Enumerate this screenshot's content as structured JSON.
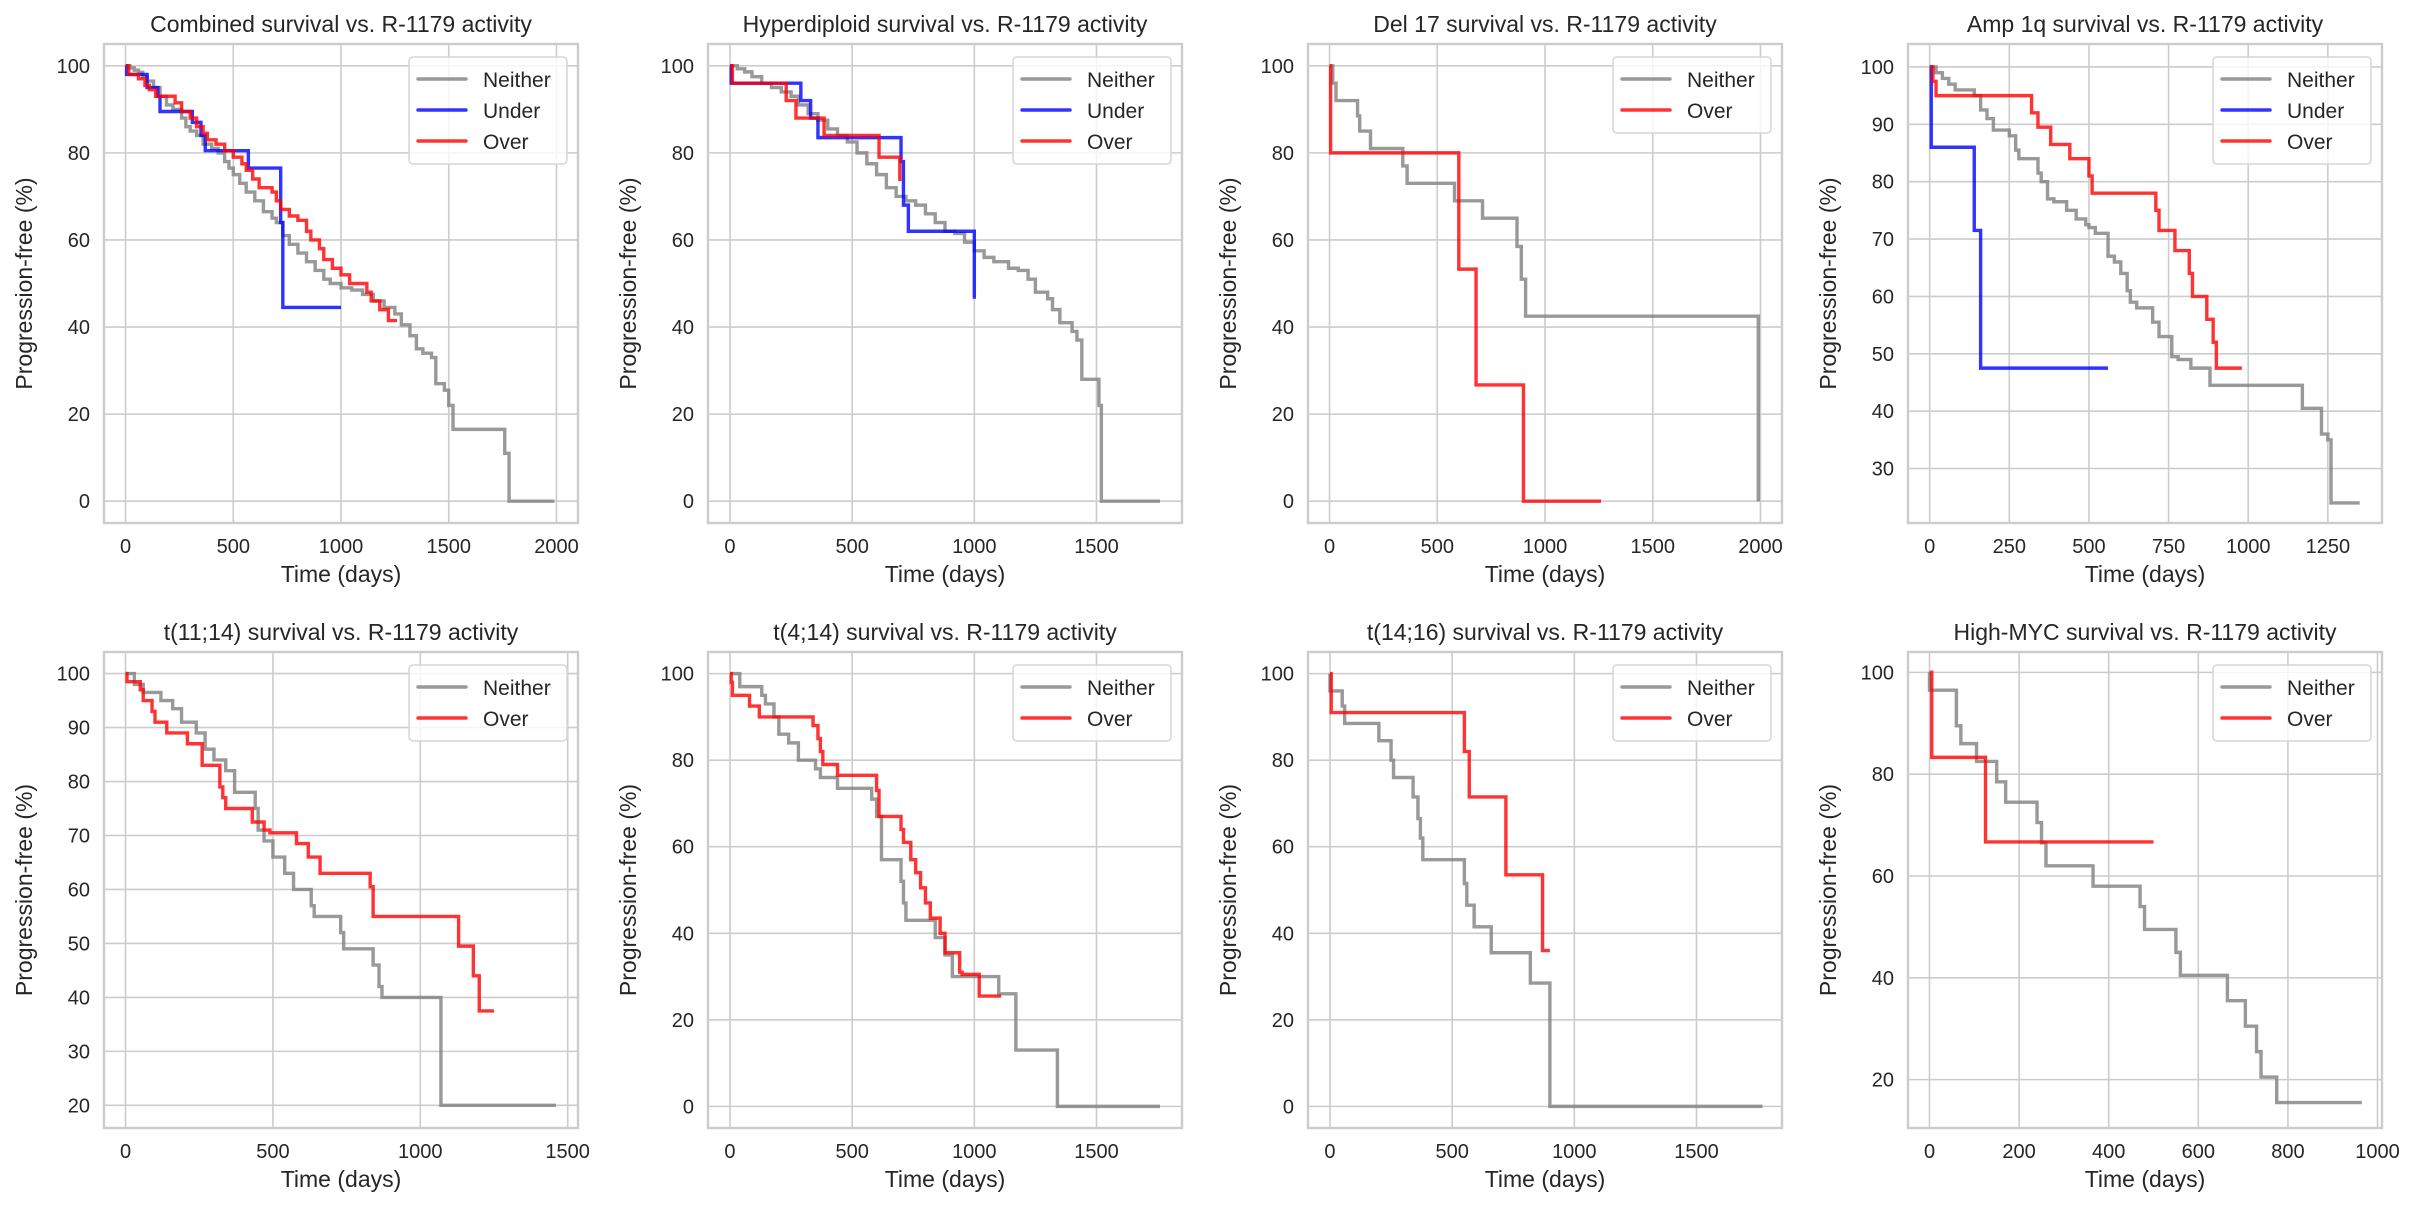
{
  "figure": {
    "series_colors": {
      "Neither": "#808080",
      "Under": "#0000ff",
      "Over": "#ff0000"
    }
  },
  "chart_data": [
    {
      "type": "line",
      "subtype": "kaplan-meier-step",
      "title": "Combined survival vs. R-1179 activity",
      "xlabel": "Time (days)",
      "ylabel": "Progression-free (%)",
      "xlim": [
        -100,
        2100
      ],
      "ylim": [
        -5,
        105
      ],
      "xticks": [
        0,
        500,
        1000,
        1500,
        2000
      ],
      "yticks": [
        0,
        20,
        40,
        60,
        80,
        100
      ],
      "grid": true,
      "legend": "top-right",
      "series": [
        {
          "name": "Neither",
          "x": [
            0,
            20,
            40,
            60,
            80,
            100,
            130,
            160,
            190,
            220,
            260,
            280,
            300,
            330,
            360,
            400,
            430,
            460,
            480,
            500,
            530,
            560,
            600,
            640,
            680,
            700,
            730,
            760,
            800,
            840,
            880,
            920,
            950,
            1000,
            1050,
            1100,
            1150,
            1200,
            1250,
            1280,
            1320,
            1350,
            1380,
            1420,
            1440,
            1480,
            1500,
            1520,
            1760,
            1780,
            1990
          ],
          "y": [
            100,
            99.5,
            99,
            98.5,
            97.5,
            96.5,
            95,
            93,
            91,
            90,
            88,
            86,
            85,
            84,
            82,
            81,
            80,
            78,
            76.5,
            75,
            73,
            71,
            69,
            66.5,
            65,
            64,
            61,
            59,
            57,
            55,
            53,
            51,
            50,
            49,
            48.5,
            47.5,
            46,
            44.5,
            43,
            40.5,
            38,
            35,
            34,
            33,
            27,
            25.5,
            22,
            16.5,
            11,
            0,
            0
          ]
        },
        {
          "name": "Under",
          "x": [
            0,
            5,
            100,
            150,
            160,
            300,
            310,
            350,
            370,
            560,
            570,
            700,
            720,
            730,
            1000
          ],
          "y": [
            100,
            98,
            95,
            93,
            89.5,
            89.5,
            87,
            84,
            80.5,
            80.5,
            76.5,
            76.5,
            64,
            44.5,
            44.5
          ]
        },
        {
          "name": "Over",
          "x": [
            0,
            15,
            60,
            90,
            110,
            140,
            180,
            230,
            260,
            300,
            330,
            360,
            380,
            420,
            460,
            500,
            540,
            560,
            590,
            620,
            680,
            700,
            720,
            760,
            800,
            840,
            860,
            900,
            920,
            960,
            1000,
            1040,
            1120,
            1140,
            1180,
            1220,
            1260
          ],
          "y": [
            100,
            98,
            97,
            95.5,
            94.5,
            93,
            93,
            91.5,
            89.5,
            88,
            86,
            84.5,
            83,
            82,
            80.5,
            79,
            77.5,
            76,
            74,
            72,
            71,
            69,
            67,
            65.5,
            64.5,
            62,
            60,
            58,
            55.5,
            53.5,
            52,
            50,
            48,
            46,
            44,
            41.5,
            41.5
          ]
        }
      ]
    },
    {
      "type": "line",
      "subtype": "kaplan-meier-step",
      "title": "Hyperdiploid survival vs. R-1179 activity",
      "xlabel": "Time (days)",
      "ylabel": "Progression-free (%)",
      "xlim": [
        -90,
        1850
      ],
      "ylim": [
        -5,
        105
      ],
      "xticks": [
        0,
        500,
        1000,
        1500
      ],
      "yticks": [
        0,
        20,
        40,
        60,
        80,
        100
      ],
      "grid": true,
      "legend": "top-right",
      "series": [
        {
          "name": "Neither",
          "x": [
            0,
            30,
            60,
            90,
            130,
            170,
            210,
            250,
            280,
            320,
            360,
            400,
            440,
            480,
            520,
            560,
            600,
            640,
            680,
            720,
            760,
            800,
            840,
            880,
            920,
            960,
            1000,
            1040,
            1080,
            1140,
            1180,
            1220,
            1250,
            1300,
            1320,
            1350,
            1400,
            1420,
            1440,
            1510,
            1520,
            1760
          ],
          "y": [
            100,
            99.3,
            98.6,
            97.5,
            96,
            95,
            94,
            93,
            91,
            89,
            87.5,
            85.5,
            84,
            82.5,
            80,
            77.5,
            75,
            72,
            70,
            69,
            68,
            66,
            64,
            62,
            61.5,
            59.5,
            57.5,
            56,
            55,
            53.5,
            53,
            51,
            48,
            46.5,
            44,
            41,
            39,
            37,
            28,
            22,
            0,
            0
          ]
        },
        {
          "name": "Under",
          "x": [
            0,
            5,
            290,
            330,
            360,
            700,
            710,
            730,
            1000
          ],
          "y": [
            100,
            96,
            92,
            88,
            83.5,
            78,
            68,
            62,
            46.5
          ]
        },
        {
          "name": "Over",
          "x": [
            0,
            10,
            230,
            270,
            385,
            610,
            695
          ],
          "y": [
            100,
            96,
            92,
            88,
            84,
            79,
            73.5
          ]
        }
      ]
    },
    {
      "type": "line",
      "subtype": "kaplan-meier-step",
      "title": "Del 17 survival vs. R-1179 activity",
      "xlabel": "Time (days)",
      "ylabel": "Progression-free (%)",
      "xlim": [
        -100,
        2100
      ],
      "ylim": [
        -5,
        105
      ],
      "xticks": [
        0,
        500,
        1000,
        1500,
        2000
      ],
      "yticks": [
        0,
        20,
        40,
        60,
        80,
        100
      ],
      "grid": true,
      "legend": "top-right",
      "series": [
        {
          "name": "Neither",
          "x": [
            0,
            15,
            30,
            130,
            140,
            190,
            340,
            360,
            580,
            710,
            870,
            890,
            910,
            1990
          ],
          "y": [
            100,
            96,
            92,
            88.5,
            85,
            81,
            77,
            73,
            69,
            65,
            58.5,
            51,
            42.5,
            0
          ]
        },
        {
          "name": "Over",
          "x": [
            0,
            5,
            600,
            680,
            900,
            1260
          ],
          "y": [
            100,
            80,
            53.3,
            26.7,
            0,
            0
          ]
        }
      ]
    },
    {
      "type": "line",
      "subtype": "kaplan-meier-step",
      "title": "Amp 1q survival vs. R-1179 activity",
      "xlabel": "Time (days)",
      "ylabel": "Progression-free (%)",
      "xlim": [
        -68,
        1420
      ],
      "ylim": [
        20.5,
        104
      ],
      "xticks": [
        0,
        250,
        500,
        750,
        1000,
        1250
      ],
      "yticks": [
        30,
        40,
        50,
        60,
        70,
        80,
        90,
        100
      ],
      "grid": true,
      "legend": "top-right",
      "series": [
        {
          "name": "Neither",
          "x": [
            0,
            20,
            40,
            60,
            80,
            140,
            160,
            180,
            200,
            250,
            270,
            280,
            340,
            350,
            370,
            390,
            430,
            460,
            490,
            500,
            520,
            560,
            580,
            600,
            620,
            630,
            650,
            700,
            720,
            760,
            780,
            820,
            880,
            1170,
            1230,
            1250,
            1260,
            1350
          ],
          "y": [
            100,
            99,
            98,
            97,
            96,
            95,
            92.5,
            91,
            89,
            88,
            85.5,
            84,
            81.5,
            80,
            77,
            76.5,
            75,
            73.5,
            72.5,
            72,
            71,
            67,
            66,
            64,
            61,
            59,
            58,
            55.5,
            53,
            49.5,
            49,
            47.5,
            44.5,
            40.5,
            36,
            35,
            24,
            24
          ]
        },
        {
          "name": "Under",
          "x": [
            0,
            5,
            140,
            160,
            560
          ],
          "y": [
            100,
            86,
            71.5,
            47.5,
            47.5
          ]
        },
        {
          "name": "Over",
          "x": [
            0,
            10,
            20,
            320,
            340,
            380,
            440,
            500,
            510,
            710,
            720,
            770,
            815,
            825,
            870,
            890,
            900,
            980
          ],
          "y": [
            100,
            97.5,
            95,
            92,
            89.5,
            86.5,
            84,
            81,
            78,
            75,
            71.5,
            68,
            64,
            60,
            56,
            52,
            47.5,
            47.5
          ]
        }
      ]
    },
    {
      "type": "line",
      "subtype": "kaplan-meier-step",
      "title": "t(11;14) survival vs. R-1179 activity",
      "xlabel": "Time (days)",
      "ylabel": "Progression-free (%)",
      "xlim": [
        -73,
        1535
      ],
      "ylim": [
        15.8,
        104
      ],
      "xticks": [
        0,
        500,
        1000,
        1500
      ],
      "yticks": [
        20,
        30,
        40,
        50,
        60,
        70,
        80,
        90,
        100
      ],
      "grid": true,
      "legend": "top-right",
      "series": [
        {
          "name": "Neither",
          "x": [
            0,
            30,
            60,
            120,
            160,
            190,
            240,
            270,
            300,
            340,
            370,
            440,
            450,
            470,
            500,
            540,
            570,
            630,
            640,
            730,
            740,
            840,
            860,
            870,
            1070,
            1460
          ],
          "y": [
            100,
            98,
            96.5,
            95,
            93.5,
            91,
            89,
            86,
            84,
            82,
            78,
            75,
            71,
            69,
            66,
            63,
            60,
            57,
            55,
            52,
            49,
            46,
            42,
            40,
            20,
            20
          ]
        },
        {
          "name": "Over",
          "x": [
            0,
            5,
            50,
            60,
            90,
            100,
            140,
            210,
            260,
            320,
            330,
            340,
            430,
            470,
            490,
            580,
            620,
            660,
            830,
            840,
            1130,
            1180,
            1200,
            1250
          ],
          "y": [
            100,
            98.5,
            97,
            95,
            93,
            91,
            89,
            87,
            83,
            79,
            77,
            75,
            72.5,
            71,
            70.5,
            68.5,
            66,
            63,
            60.5,
            55,
            49.5,
            44,
            37.5,
            37.5
          ]
        }
      ]
    },
    {
      "type": "line",
      "subtype": "kaplan-meier-step",
      "title": "t(4;14) survival vs. R-1179 activity",
      "xlabel": "Time (days)",
      "ylabel": "Progression-free (%)",
      "xlim": [
        -90,
        1850
      ],
      "ylim": [
        -5,
        105
      ],
      "xticks": [
        0,
        500,
        1000,
        1500
      ],
      "yticks": [
        0,
        20,
        40,
        60,
        80,
        100
      ],
      "grid": true,
      "legend": "top-right",
      "series": [
        {
          "name": "Neither",
          "x": [
            0,
            40,
            130,
            145,
            180,
            200,
            240,
            280,
            350,
            370,
            440,
            580,
            600,
            620,
            700,
            710,
            720,
            840,
            880,
            910,
            1100,
            1170,
            1340,
            1760
          ],
          "y": [
            100,
            97,
            95,
            93,
            90,
            86,
            84,
            80,
            78,
            76,
            73.5,
            71,
            67,
            57,
            52,
            47,
            43,
            39,
            35,
            30,
            26,
            13,
            0,
            0
          ]
        },
        {
          "name": "Over",
          "x": [
            0,
            5,
            10,
            80,
            120,
            340,
            360,
            370,
            380,
            440,
            600,
            610,
            700,
            710,
            740,
            760,
            780,
            800,
            820,
            860,
            880,
            940,
            950,
            1020,
            1110
          ],
          "y": [
            100,
            98,
            95,
            92.5,
            90,
            88,
            85,
            82,
            79,
            76.5,
            73,
            67,
            64,
            61,
            57,
            54,
            50.5,
            47,
            43.5,
            40,
            35.5,
            31,
            30.5,
            25.5,
            25.5
          ]
        }
      ]
    },
    {
      "type": "line",
      "subtype": "kaplan-meier-step",
      "title": "t(14;16) survival vs. R-1179 activity",
      "xlabel": "Time (days)",
      "ylabel": "Progression-free (%)",
      "xlim": [
        -90,
        1850
      ],
      "ylim": [
        -5,
        105
      ],
      "xticks": [
        0,
        500,
        1000,
        1500
      ],
      "yticks": [
        0,
        20,
        40,
        60,
        80,
        100
      ],
      "grid": true,
      "legend": "top-right",
      "series": [
        {
          "name": "Neither",
          "x": [
            0,
            50,
            60,
            200,
            250,
            260,
            340,
            360,
            370,
            380,
            550,
            560,
            590,
            660,
            820,
            900,
            1770
          ],
          "y": [
            96,
            92.5,
            88.5,
            84.5,
            80,
            76,
            71.5,
            66.5,
            62,
            57,
            51.5,
            46.5,
            41.5,
            35.5,
            28.5,
            0,
            0
          ]
        },
        {
          "name": "Over",
          "x": [
            0,
            5,
            550,
            570,
            720,
            870,
            900
          ],
          "y": [
            100,
            91,
            82,
            71.5,
            53.5,
            36,
            36
          ]
        }
      ]
    },
    {
      "type": "line",
      "subtype": "kaplan-meier-step",
      "title": "High-MYC survival vs. R-1179 activity",
      "xlabel": "Time (days)",
      "ylabel": "Progression-free (%)",
      "xlim": [
        -48,
        1010
      ],
      "ylim": [
        10.5,
        104
      ],
      "xticks": [
        0,
        200,
        400,
        600,
        800,
        1000
      ],
      "yticks": [
        20,
        40,
        60,
        80,
        100
      ],
      "grid": true,
      "legend": "top-right",
      "series": [
        {
          "name": "Neither",
          "x": [
            0,
            60,
            70,
            105,
            150,
            170,
            240,
            250,
            260,
            365,
            470,
            480,
            550,
            560,
            665,
            705,
            730,
            740,
            775,
            965
          ],
          "y": [
            96.5,
            89.5,
            86,
            82.5,
            78.5,
            74.5,
            70.5,
            66.5,
            62,
            58,
            54,
            49.5,
            45,
            40.5,
            35.5,
            30.5,
            25.5,
            20.5,
            15.5,
            15.5
          ]
        },
        {
          "name": "Over",
          "x": [
            0,
            5,
            125,
            500
          ],
          "y": [
            100,
            83.3,
            66.7,
            66.7
          ]
        }
      ]
    }
  ]
}
